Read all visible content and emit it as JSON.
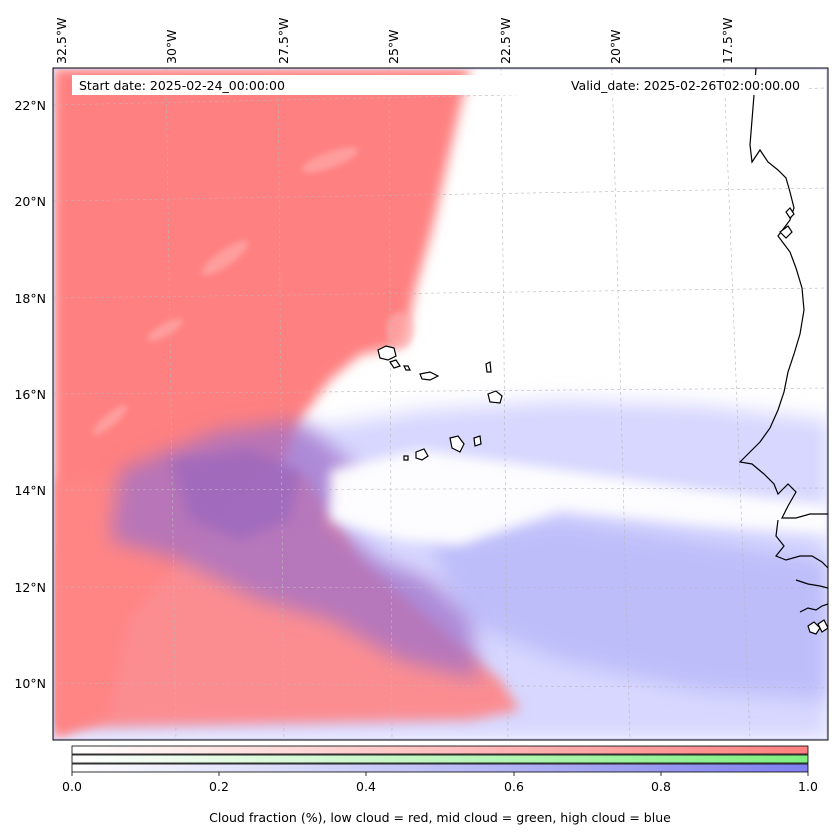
{
  "header": {
    "start_date": "Start date: 2025-02-24_00:00:00",
    "valid_date": "Valid_date: 2025-02-26T02:00:00.00"
  },
  "axes": {
    "lon_labels": [
      "32.5°W",
      "30°W",
      "27.5°W",
      "25°W",
      "22.5°W",
      "20°W",
      "17.5°W"
    ],
    "lat_labels": [
      "22°N",
      "20°N",
      "18°N",
      "16°N",
      "14°N",
      "12°N",
      "10°N"
    ]
  },
  "colorbar": {
    "ticks": [
      "0.0",
      "0.2",
      "0.4",
      "0.6",
      "0.8",
      "1.0"
    ],
    "caption": "Cloud fraction (%), low cloud = red, mid cloud = green, high cloud = blue",
    "colors": {
      "low": "#ff7f7f",
      "mid": "#7fef7f",
      "high": "#7f7fef"
    }
  }
}
